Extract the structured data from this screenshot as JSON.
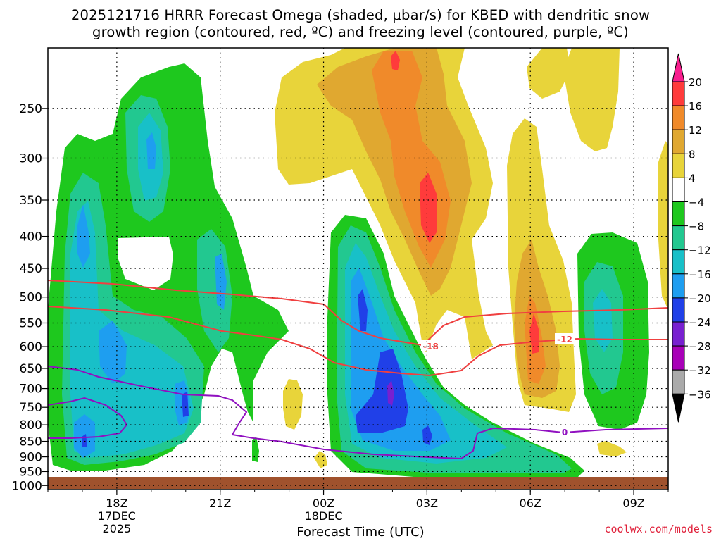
{
  "header": {
    "title_line1": "2025121716 HRRR Forecast Omega (shaded, μbar/s) for KBED with dendritic snow",
    "title_line2": "growth region (contoured, red, ºC) and freezing level (contoured, purple, ºC)"
  },
  "footer": {
    "credit": "coolwx.com/models"
  },
  "chart_data": {
    "type": "heatmap",
    "title": "2025121716 HRRR Forecast Omega (shaded, μbar/s) for KBED with dendritic snow growth region (contoured, red, ºC) and freezing level (contoured, purple, ºC)",
    "xlabel": "Forecast Time (UTC)",
    "ylabel": "",
    "x_ticks": [
      {
        "hour": 2,
        "label": "18Z",
        "sub1": "17DEC",
        "sub2": "2025"
      },
      {
        "hour": 5,
        "label": "21Z",
        "sub1": "",
        "sub2": ""
      },
      {
        "hour": 8,
        "label": "00Z",
        "sub1": "18DEC",
        "sub2": ""
      },
      {
        "hour": 11,
        "label": "03Z",
        "sub1": "",
        "sub2": ""
      },
      {
        "hour": 14,
        "label": "06Z",
        "sub1": "",
        "sub2": ""
      },
      {
        "hour": 17,
        "label": "09Z",
        "sub1": "",
        "sub2": ""
      }
    ],
    "y_ticks": [
      250,
      300,
      350,
      400,
      450,
      500,
      550,
      600,
      650,
      700,
      750,
      800,
      850,
      900,
      950,
      1000
    ],
    "x_range_hours": [
      0,
      18
    ],
    "y_range_mb": [
      200,
      1015
    ],
    "grid": true,
    "colorbar": {
      "labels": [
        "20",
        "16",
        "12",
        "8",
        "4",
        "−4",
        "−8",
        "−12",
        "−16",
        "−20",
        "−24",
        "−28",
        "−32",
        "−36"
      ],
      "colors": [
        "#f81e8e",
        "#ff3b3b",
        "#f08a2a",
        "#e0a830",
        "#e8d43a",
        "#ffffff",
        "#1ec81e",
        "#22c890",
        "#18c0c8",
        "#1e9ef0",
        "#2040e8",
        "#7820d0",
        "#a800b8",
        "#aaaaaa",
        "#000000"
      ]
    },
    "contours": [
      {
        "name": "dgz",
        "labels": [
          "-18",
          "-12"
        ],
        "color": "#f04040"
      },
      {
        "name": "freezing",
        "labels": [
          "0"
        ],
        "color": "#9010c0"
      }
    ],
    "colors": {
      "ground": "#a0522d",
      "red_contour": "#f04040",
      "purple_contour": "#9010c0"
    }
  }
}
